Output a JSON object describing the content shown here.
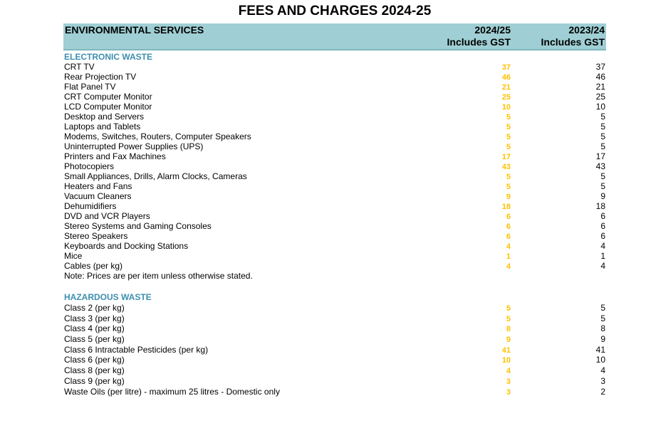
{
  "page": {
    "title": "FEES AND CHARGES 2024-25"
  },
  "header": {
    "service": "ENVIRONMENTAL SERVICES",
    "col1_line1": "2024/25",
    "col1_line2": "Includes GST",
    "col2_line1": "2023/24",
    "col2_line2": "Includes GST"
  },
  "colors": {
    "header_bg": "#9fcfd4",
    "section_title": "#3d8fb0",
    "current_value": "#ffc000"
  },
  "electronic_waste": {
    "title": "ELECTRONIC WASTE",
    "note": "Note: Prices are per item unless otherwise stated.",
    "items": [
      {
        "label": "CRT TV",
        "cur": "37",
        "prev": "37"
      },
      {
        "label": "Rear Projection TV",
        "cur": "46",
        "prev": "46"
      },
      {
        "label": "Flat Panel TV",
        "cur": "21",
        "prev": "21"
      },
      {
        "label": "CRT Computer Monitor",
        "cur": "25",
        "prev": "25"
      },
      {
        "label": "LCD Computer Monitor",
        "cur": "10",
        "prev": "10"
      },
      {
        "label": "Desktop and Servers",
        "cur": "5",
        "prev": "5"
      },
      {
        "label": "Laptops and Tablets",
        "cur": "5",
        "prev": "5"
      },
      {
        "label": "Modems, Switches, Routers, Computer Speakers",
        "cur": "5",
        "prev": "5"
      },
      {
        "label": "Uninterrupted Power Supplies (UPS)",
        "cur": "5",
        "prev": "5"
      },
      {
        "label": "Printers and Fax Machines",
        "cur": "17",
        "prev": "17"
      },
      {
        "label": "Photocopiers",
        "cur": "43",
        "prev": "43"
      },
      {
        "label": "Small Appliances, Drills, Alarm Clocks, Cameras",
        "cur": "5",
        "prev": "5"
      },
      {
        "label": "Heaters and Fans",
        "cur": "5",
        "prev": "5"
      },
      {
        "label": "Vacuum Cleaners",
        "cur": "9",
        "prev": "9"
      },
      {
        "label": "Dehumidifiers",
        "cur": "18",
        "prev": "18"
      },
      {
        "label": "DVD and VCR Players",
        "cur": "6",
        "prev": "6"
      },
      {
        "label": "Stereo Systems and Gaming Consoles",
        "cur": "6",
        "prev": "6"
      },
      {
        "label": "Stereo Speakers",
        "cur": "6",
        "prev": "6"
      },
      {
        "label": "Keyboards and Docking Stations",
        "cur": "4",
        "prev": "4"
      },
      {
        "label": "Mice",
        "cur": "1",
        "prev": "1"
      },
      {
        "label": "Cables (per kg)",
        "cur": "4",
        "prev": "4"
      }
    ]
  },
  "hazardous_waste": {
    "title": "HAZARDOUS WASTE",
    "items": [
      {
        "label": "Class 2 (per kg)",
        "cur": "5",
        "prev": "5"
      },
      {
        "label": "Class 3 (per kg)",
        "cur": "5",
        "prev": "5"
      },
      {
        "label": "Class 4 (per kg)",
        "cur": "8",
        "prev": "8"
      },
      {
        "label": "Class 5 (per kg)",
        "cur": "9",
        "prev": "9"
      },
      {
        "label": "Class 6 Intractable Pesticides (per kg)",
        "cur": "41",
        "prev": "41"
      },
      {
        "label": "Class 6 (per kg)",
        "cur": "10",
        "prev": "10"
      },
      {
        "label": "Class 8 (per kg)",
        "cur": "4",
        "prev": "4"
      },
      {
        "label": "Class 9 (per kg)",
        "cur": "3",
        "prev": "3"
      },
      {
        "label": "Waste Oils (per litre) - maximum 25 litres - Domestic only",
        "cur": "3",
        "prev": "2"
      }
    ]
  }
}
